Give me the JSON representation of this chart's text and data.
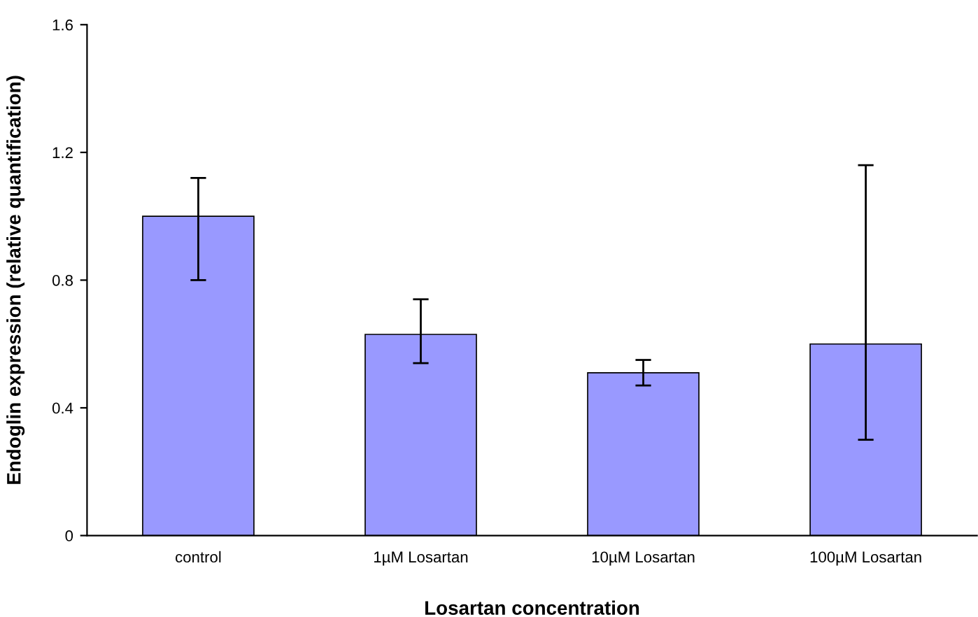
{
  "chart_data": {
    "type": "bar",
    "xlabel": "Losartan concentration",
    "ylabel": "Endoglin expression (relative quantification)",
    "categories": [
      "control",
      "1µM Losartan",
      "10µM Losartan",
      "100µM Losartan"
    ],
    "values": [
      1.0,
      0.63,
      0.51,
      0.6
    ],
    "errors": [
      [
        0.8,
        1.12
      ],
      [
        0.54,
        0.74
      ],
      [
        0.47,
        0.55
      ],
      [
        0.3,
        1.16
      ]
    ],
    "color": "#9999ff",
    "ylim": [
      0,
      1.6
    ],
    "yticks": [
      0,
      0.4,
      0.8,
      1.2,
      1.6
    ],
    "grid": false
  }
}
